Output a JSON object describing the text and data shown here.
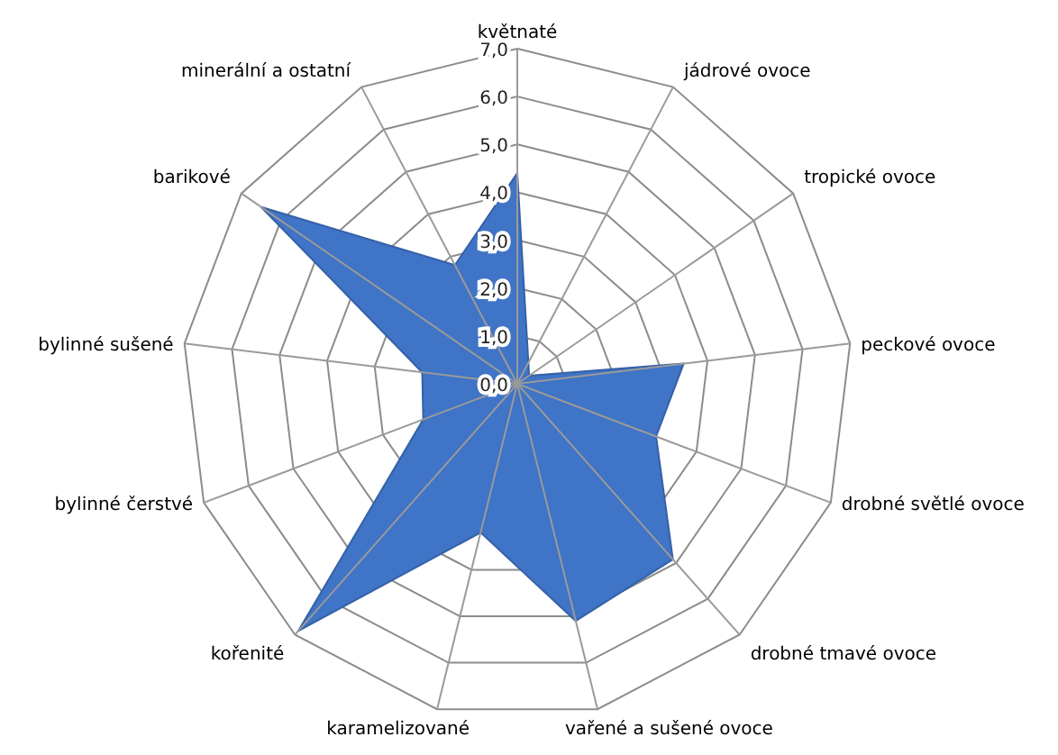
{
  "chart_data": {
    "type": "radar",
    "categories": [
      "květnaté",
      "jádrové ovoce",
      "tropické ovoce",
      "peckové ovoce",
      "drobné světlé ovoce",
      "drobné tmavé ovoce",
      "vařené a sušené ovoce",
      "karamelizované",
      "kořenité",
      "bylinné čerstvé",
      "bylinné sušené",
      "barikové",
      "minerální a ostatní"
    ],
    "series": [
      {
        "color": "#3f74c6",
        "values": [
          4.4,
          0.5,
          0.3,
          3.5,
          3.1,
          4.9,
          5.1,
          3.2,
          6.9,
          2.1,
          2.0,
          6.5,
          2.8
        ]
      }
    ],
    "ylim": [
      0,
      7
    ],
    "yticks": [
      {
        "value": 0,
        "label": "0,0"
      },
      {
        "value": 1,
        "label": "1,0"
      },
      {
        "value": 2,
        "label": "2,0"
      },
      {
        "value": 3,
        "label": "3,0"
      },
      {
        "value": 4,
        "label": "4,0"
      },
      {
        "value": 5,
        "label": "5,0"
      },
      {
        "value": 6,
        "label": "6,0"
      },
      {
        "value": 7,
        "label": "7,0"
      }
    ],
    "grid": true
  }
}
